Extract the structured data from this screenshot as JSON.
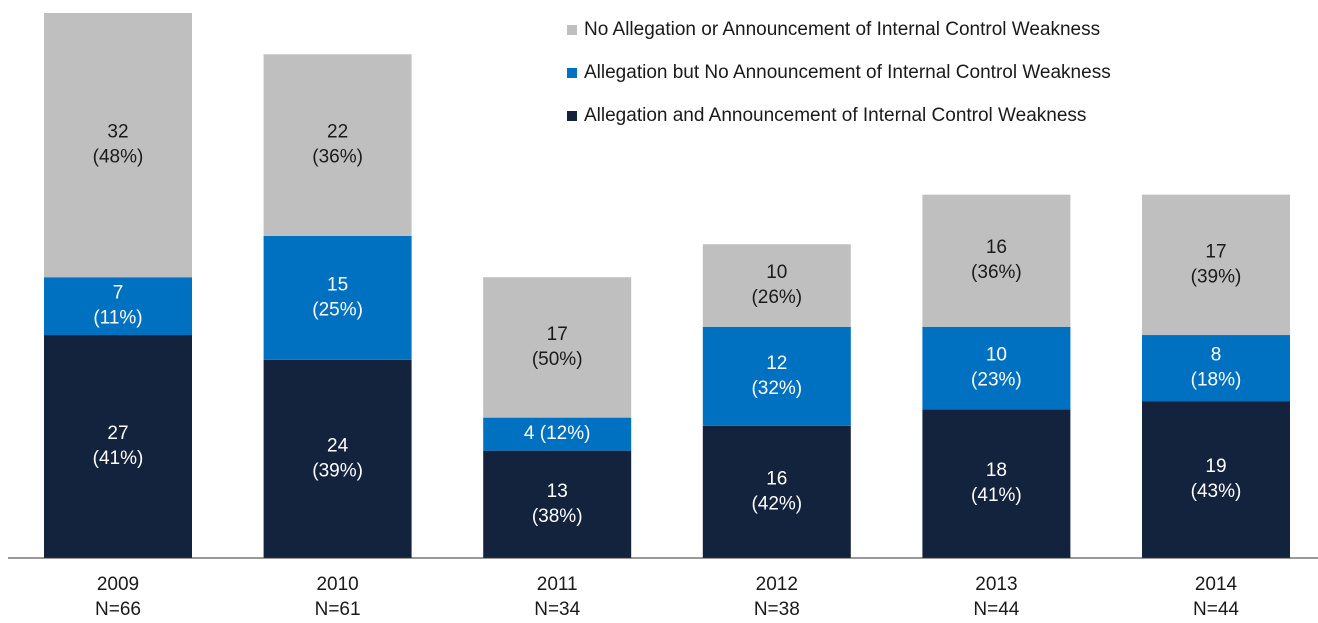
{
  "chart_data": {
    "type": "stacked_bar",
    "categories": [
      "2009",
      "2010",
      "2011",
      "2012",
      "2013",
      "2014"
    ],
    "n_labels": [
      "N=66",
      "N=61",
      "N=34",
      "N=38",
      "N=44",
      "N=44"
    ],
    "ylim": [
      0,
      66
    ],
    "series": [
      {
        "name": "Allegation and Announcement of Internal Control Weakness",
        "color": "#13233d",
        "label_color": "#ffffff",
        "values": [
          27,
          24,
          13,
          16,
          18,
          19
        ],
        "value_labels": [
          [
            "27",
            "(41%)"
          ],
          [
            "24",
            "(39%)"
          ],
          [
            "13",
            "(38%)"
          ],
          [
            "16",
            "(42%)"
          ],
          [
            "18",
            "(41%)"
          ],
          [
            "19",
            "(43%)"
          ]
        ]
      },
      {
        "name": "Allegation but No Announcement of Internal Control Weakness",
        "color": "#0070c0",
        "label_color": "#ffffff",
        "values": [
          7,
          15,
          4,
          12,
          10,
          8
        ],
        "value_labels": [
          [
            "7",
            "(11%)"
          ],
          [
            "15",
            "(25%)"
          ],
          [
            "4 (12%)"
          ],
          [
            "12",
            "(32%)"
          ],
          [
            "10",
            "(23%)"
          ],
          [
            "8",
            "(18%)"
          ]
        ]
      },
      {
        "name": "No Allegation or Announcement of Internal Control Weakness",
        "color": "#bfbfbf",
        "label_color": "#1a1a1a",
        "values": [
          32,
          22,
          17,
          10,
          16,
          17
        ],
        "value_labels": [
          [
            "32",
            "(48%)"
          ],
          [
            "22",
            "(36%)"
          ],
          [
            "17",
            "(50%)"
          ],
          [
            "10",
            "(26%)"
          ],
          [
            "16",
            "(36%)"
          ],
          [
            "17",
            "(39%)"
          ]
        ]
      }
    ]
  }
}
